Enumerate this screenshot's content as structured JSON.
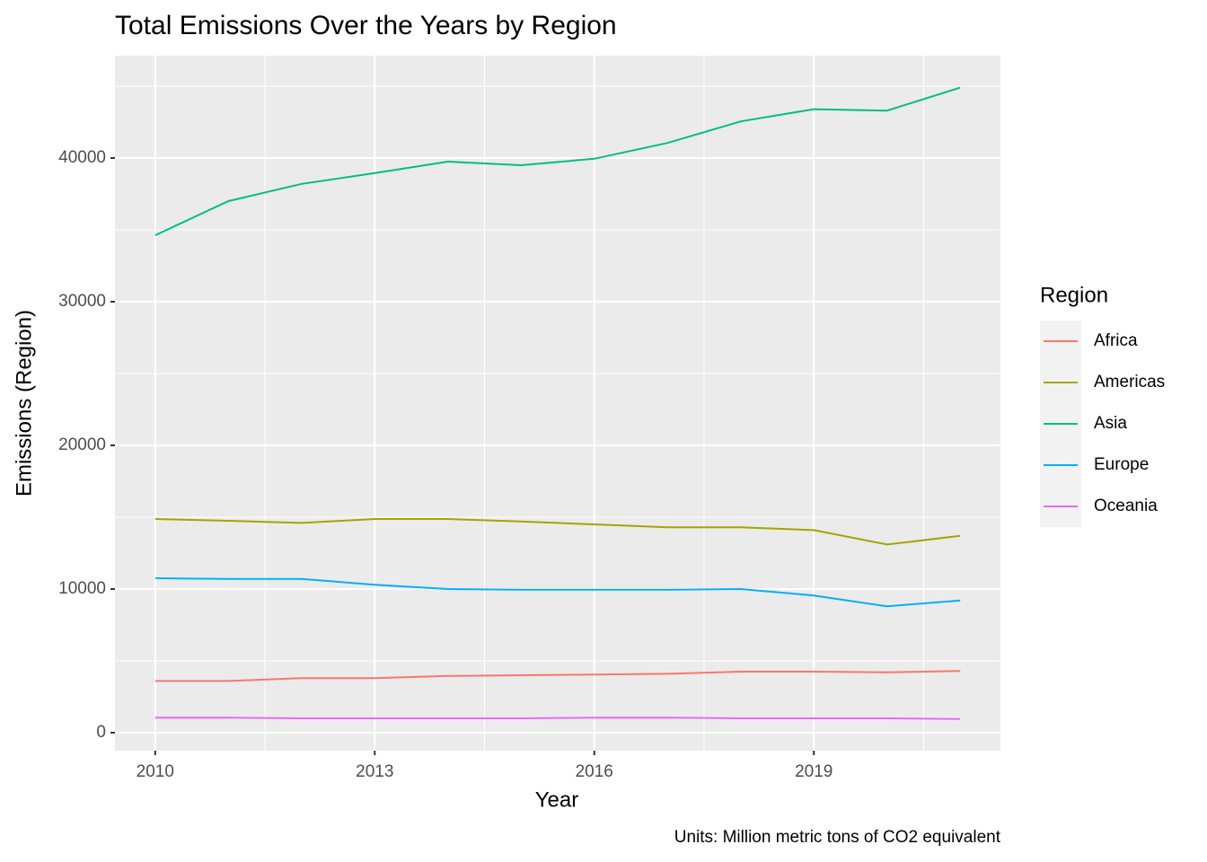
{
  "chart_data": {
    "type": "line",
    "title": "Total Emissions Over the Years by Region",
    "x_label": "Year",
    "y_label": "Emissions (Region)",
    "caption": "Units: Million metric tons of CO2 equivalent",
    "legend_title": "Region",
    "legend_position": "right",
    "grid": true,
    "x": [
      2010,
      2011,
      2012,
      2013,
      2014,
      2015,
      2016,
      2017,
      2018,
      2019,
      2020,
      2021
    ],
    "xlim": [
      2009.45,
      2021.55
    ],
    "xticks": [
      2010,
      2013,
      2016,
      2019
    ],
    "ylim": [
      -1250,
      47125
    ],
    "yticks": [
      0,
      10000,
      20000,
      30000,
      40000
    ],
    "series": [
      {
        "name": "Africa",
        "color": "#F8766D",
        "values": [
          3600,
          3600,
          3800,
          3800,
          3950,
          4000,
          4050,
          4100,
          4250,
          4250,
          4200,
          4300
        ]
      },
      {
        "name": "Americas",
        "color": "#A3A500",
        "values": [
          14875,
          14750,
          14600,
          14875,
          14875,
          14700,
          14500,
          14300,
          14300,
          14100,
          13100,
          13700
        ]
      },
      {
        "name": "Asia",
        "color": "#00BF7D",
        "values": [
          34625,
          37000,
          38200,
          38950,
          39750,
          39500,
          39950,
          41050,
          42550,
          43400,
          43300,
          44900
        ]
      },
      {
        "name": "Europe",
        "color": "#00B0F6",
        "values": [
          10750,
          10700,
          10700,
          10300,
          10000,
          9950,
          9950,
          9950,
          10000,
          9550,
          8800,
          9200
        ]
      },
      {
        "name": "Oceania",
        "color": "#E76BF3",
        "values": [
          1050,
          1050,
          1000,
          1000,
          1000,
          1000,
          1050,
          1050,
          1000,
          1000,
          1000,
          950
        ]
      }
    ]
  }
}
